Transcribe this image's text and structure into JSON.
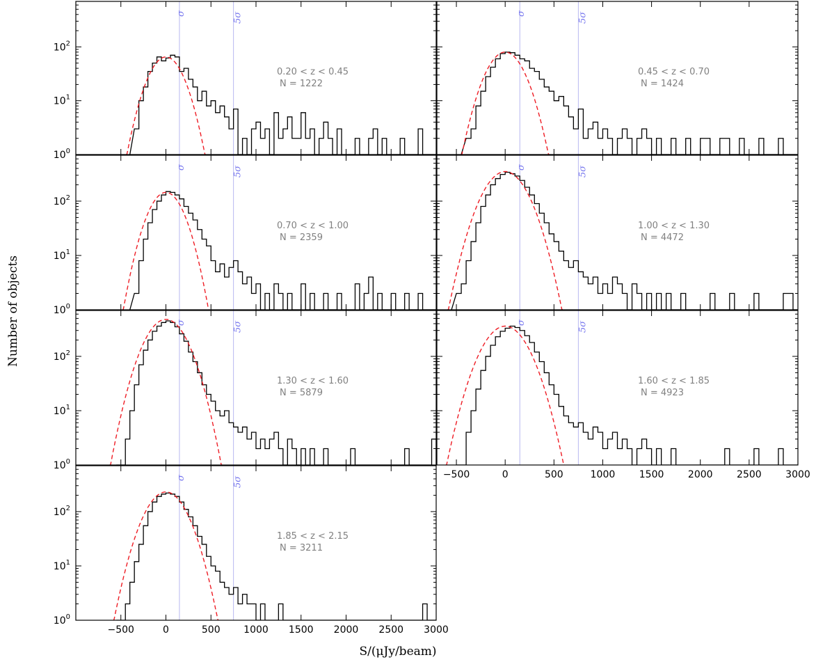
{
  "figure": {
    "ylabel": "Number of objects",
    "xlabel": "S/(μJy/beam)",
    "sigma_label": "σ",
    "five_sigma_label": "5σ",
    "colors": {
      "histogram": "#000000",
      "gaussian_fit": "#ee1c24",
      "sigma_lines": "#b8b8f0",
      "annotation": "#808080"
    }
  },
  "chart_data": [
    {
      "type": "histogram",
      "panel": "0.20 < z < 0.45",
      "annotation": [
        "0.20 < z < 0.45",
        "N = 1222"
      ],
      "xlim": [
        -1000,
        3000
      ],
      "yscale": "log",
      "ylim": [
        1,
        700
      ],
      "sigma_lines": [
        150,
        750
      ],
      "histogram": {
        "x": [
          -350,
          -300,
          -250,
          -200,
          -150,
          -100,
          -50,
          0,
          50,
          100,
          150,
          200,
          250,
          300,
          350,
          400,
          450,
          500,
          550,
          600,
          650,
          700,
          750,
          800,
          850,
          900,
          950,
          1000,
          1050,
          1100,
          1150,
          1200,
          1250,
          1300,
          1350,
          1400,
          1450,
          1500,
          1550,
          1600,
          1650,
          1700,
          1750,
          1800,
          1850,
          1900,
          1950,
          2000,
          2050,
          2100,
          2150,
          2200,
          2250,
          2300,
          2350,
          2400,
          2450,
          2500,
          2550,
          2600,
          2650,
          2700,
          2750,
          2800,
          2850,
          2900,
          2950
        ],
        "counts": [
          3,
          10,
          18,
          35,
          50,
          65,
          55,
          62,
          70,
          65,
          35,
          40,
          25,
          18,
          10,
          15,
          8,
          10,
          6,
          8,
          5,
          3,
          7,
          1,
          2,
          1,
          3,
          4,
          2,
          3,
          1,
          6,
          2,
          3,
          5,
          2,
          2,
          6,
          2,
          3,
          1,
          2,
          4,
          2,
          1,
          3,
          1,
          1,
          1,
          2,
          1,
          1,
          2,
          3,
          1,
          2,
          1,
          1,
          1,
          2,
          1,
          1,
          1,
          3,
          1,
          1,
          1
        ]
      },
      "gaussian_fit": {
        "mu": 0,
        "sigma": 150,
        "amplitude": 65
      }
    },
    {
      "type": "histogram",
      "panel": "0.45 < z < 0.70",
      "annotation": [
        "0.45 < z < 0.70",
        "N = 1424"
      ],
      "xlim": [
        -700,
        3000
      ],
      "yscale": "log",
      "ylim": [
        1,
        700
      ],
      "sigma_lines": [
        150,
        750
      ],
      "histogram": {
        "x": [
          -400,
          -350,
          -300,
          -250,
          -200,
          -150,
          -100,
          -50,
          0,
          50,
          100,
          150,
          200,
          250,
          300,
          350,
          400,
          450,
          500,
          550,
          600,
          650,
          700,
          750,
          800,
          850,
          900,
          950,
          1000,
          1050,
          1100,
          1150,
          1200,
          1250,
          1300,
          1350,
          1400,
          1450,
          1500,
          1550,
          1600,
          1650,
          1700,
          1750,
          1800,
          1850,
          1900,
          1950,
          2000,
          2050,
          2100,
          2150,
          2200,
          2250,
          2300,
          2350,
          2400,
          2450,
          2500,
          2550,
          2600,
          2650,
          2700,
          2750,
          2800,
          2850,
          2900,
          2950
        ],
        "counts": [
          2,
          3,
          8,
          15,
          28,
          42,
          60,
          75,
          80,
          78,
          70,
          60,
          55,
          40,
          35,
          25,
          18,
          15,
          10,
          12,
          8,
          5,
          3,
          7,
          2,
          3,
          4,
          2,
          3,
          2,
          1,
          2,
          3,
          2,
          1,
          2,
          3,
          2,
          1,
          2,
          1,
          1,
          2,
          1,
          1,
          2,
          1,
          1,
          2,
          2,
          1,
          1,
          2,
          2,
          1,
          1,
          2,
          1,
          1,
          1,
          2,
          1,
          1,
          1,
          2,
          1,
          1,
          1
        ]
      },
      "gaussian_fit": {
        "mu": 0,
        "sigma": 150,
        "amplitude": 80
      }
    },
    {
      "type": "histogram",
      "panel": "0.70 < z < 1.00",
      "annotation": [
        "0.70 < z < 1.00",
        "N = 2359"
      ],
      "xlim": [
        -1000,
        3000
      ],
      "yscale": "log",
      "ylim": [
        1,
        700
      ],
      "sigma_lines": [
        150,
        750
      ],
      "histogram": {
        "x": [
          -350,
          -300,
          -250,
          -200,
          -150,
          -100,
          -50,
          0,
          50,
          100,
          150,
          200,
          250,
          300,
          350,
          400,
          450,
          500,
          550,
          600,
          650,
          700,
          750,
          800,
          850,
          900,
          950,
          1000,
          1050,
          1100,
          1150,
          1200,
          1250,
          1300,
          1350,
          1400,
          1450,
          1500,
          1550,
          1600,
          1650,
          1700,
          1750,
          1800,
          1850,
          1900,
          1950,
          2000,
          2050,
          2100,
          2150,
          2200,
          2250,
          2300,
          2350,
          2400,
          2450,
          2500,
          2550,
          2600,
          2650,
          2700,
          2750,
          2800,
          2850,
          2900,
          2950
        ],
        "counts": [
          2,
          8,
          20,
          40,
          70,
          100,
          130,
          150,
          145,
          130,
          110,
          80,
          60,
          45,
          30,
          20,
          15,
          8,
          5,
          7,
          4,
          6,
          8,
          5,
          3,
          4,
          2,
          3,
          1,
          2,
          1,
          3,
          2,
          1,
          2,
          1,
          1,
          3,
          1,
          2,
          1,
          1,
          2,
          1,
          1,
          2,
          1,
          1,
          1,
          3,
          1,
          2,
          4,
          1,
          2,
          1,
          1,
          2,
          1,
          1,
          2,
          1,
          1,
          2,
          1,
          1,
          1
        ]
      },
      "gaussian_fit": {
        "mu": 0,
        "sigma": 150,
        "amplitude": 145
      }
    },
    {
      "type": "histogram",
      "panel": "1.00 < z < 1.30",
      "annotation": [
        "1.00 < z < 1.30",
        "N = 4472"
      ],
      "xlim": [
        -700,
        3000
      ],
      "yscale": "log",
      "ylim": [
        1,
        700
      ],
      "sigma_lines": [
        150,
        750
      ],
      "histogram": {
        "x": [
          -500,
          -450,
          -400,
          -350,
          -300,
          -250,
          -200,
          -150,
          -100,
          -50,
          0,
          50,
          100,
          150,
          200,
          250,
          300,
          350,
          400,
          450,
          500,
          550,
          600,
          650,
          700,
          750,
          800,
          850,
          900,
          950,
          1000,
          1050,
          1100,
          1150,
          1200,
          1250,
          1300,
          1350,
          1400,
          1450,
          1500,
          1550,
          1600,
          1650,
          1700,
          1750,
          1800,
          1850,
          1900,
          1950,
          2000,
          2050,
          2100,
          2150,
          2200,
          2250,
          2300,
          2350,
          2400,
          2450,
          2500,
          2550,
          2600,
          2650,
          2700,
          2750,
          2800,
          2850,
          2900,
          2950
        ],
        "counts": [
          2,
          3,
          8,
          18,
          40,
          80,
          130,
          200,
          260,
          310,
          340,
          320,
          290,
          240,
          180,
          130,
          90,
          60,
          40,
          25,
          18,
          12,
          8,
          6,
          8,
          5,
          4,
          3,
          4,
          2,
          3,
          2,
          4,
          3,
          2,
          1,
          3,
          2,
          1,
          2,
          1,
          2,
          1,
          2,
          1,
          1,
          2,
          1,
          1,
          1,
          1,
          1,
          2,
          1,
          1,
          1,
          2,
          1,
          1,
          1,
          1,
          2,
          1,
          1,
          1,
          1,
          1,
          2,
          2,
          1
        ]
      },
      "gaussian_fit": {
        "mu": 0,
        "sigma": 170,
        "amplitude": 350
      }
    },
    {
      "type": "histogram",
      "panel": "1.30 < z < 1.60",
      "annotation": [
        "1.30 < z < 1.60",
        "N = 5879"
      ],
      "xlim": [
        -1000,
        3000
      ],
      "yscale": "log",
      "ylim": [
        1,
        700
      ],
      "sigma_lines": [
        150,
        750
      ],
      "histogram": {
        "x": [
          -500,
          -450,
          -400,
          -350,
          -300,
          -250,
          -200,
          -150,
          -100,
          -50,
          0,
          50,
          100,
          150,
          200,
          250,
          300,
          350,
          400,
          450,
          500,
          550,
          600,
          650,
          700,
          750,
          800,
          850,
          900,
          950,
          1000,
          1050,
          1100,
          1150,
          1200,
          1250,
          1300,
          1350,
          1400,
          1450,
          1500,
          1550,
          1600,
          1650,
          1700,
          1750,
          1800,
          1850,
          1900,
          1950,
          2000,
          2050,
          2100,
          2150,
          2200,
          2250,
          2300,
          2350,
          2400,
          2450,
          2500,
          2550,
          2600,
          2650,
          2700,
          2750,
          2800,
          2850,
          2900,
          2950
        ],
        "counts": [
          1,
          3,
          10,
          30,
          70,
          130,
          200,
          290,
          360,
          420,
          450,
          420,
          350,
          260,
          190,
          120,
          80,
          50,
          30,
          20,
          15,
          10,
          8,
          10,
          6,
          5,
          4,
          5,
          3,
          4,
          2,
          3,
          2,
          3,
          4,
          2,
          1,
          3,
          2,
          1,
          2,
          1,
          2,
          1,
          1,
          2,
          1,
          1,
          1,
          1,
          1,
          2,
          1,
          1,
          1,
          1,
          1,
          1,
          1,
          1,
          1,
          1,
          1,
          2,
          1,
          1,
          1,
          1,
          1,
          3
        ]
      },
      "gaussian_fit": {
        "mu": 0,
        "sigma": 175,
        "amplitude": 480
      }
    },
    {
      "type": "histogram",
      "panel": "1.60 < z < 1.85",
      "annotation": [
        "1.60 < z < 1.85",
        "N = 4923"
      ],
      "xlim": [
        -700,
        3000
      ],
      "yscale": "log",
      "ylim": [
        1,
        700
      ],
      "sigma_lines": [
        150,
        750
      ],
      "histogram": {
        "x": [
          -450,
          -400,
          -350,
          -300,
          -250,
          -200,
          -150,
          -100,
          -50,
          0,
          50,
          100,
          150,
          200,
          250,
          300,
          350,
          400,
          450,
          500,
          550,
          600,
          650,
          700,
          750,
          800,
          850,
          900,
          950,
          1000,
          1050,
          1100,
          1150,
          1200,
          1250,
          1300,
          1350,
          1400,
          1450,
          1500,
          1550,
          1600,
          1650,
          1700,
          1750,
          1800,
          1850,
          1900,
          1950,
          2000,
          2050,
          2100,
          2150,
          2200,
          2250,
          2300,
          2350,
          2400,
          2450,
          2500,
          2550,
          2600,
          2650,
          2700,
          2750,
          2800,
          2850,
          2900,
          2950
        ],
        "counts": [
          1,
          4,
          10,
          25,
          55,
          100,
          160,
          230,
          290,
          330,
          360,
          340,
          300,
          240,
          180,
          120,
          80,
          50,
          30,
          20,
          12,
          8,
          6,
          5,
          6,
          4,
          3,
          5,
          4,
          2,
          3,
          4,
          2,
          3,
          2,
          1,
          2,
          3,
          2,
          1,
          2,
          1,
          1,
          2,
          1,
          1,
          1,
          1,
          1,
          1,
          1,
          1,
          1,
          1,
          2,
          1,
          1,
          1,
          1,
          1,
          2,
          1,
          1,
          1,
          1,
          2,
          1,
          1,
          1
        ]
      },
      "gaussian_fit": {
        "mu": 0,
        "sigma": 175,
        "amplitude": 360
      }
    },
    {
      "type": "histogram",
      "panel": "1.85 < z < 2.15",
      "annotation": [
        "1.85 < z < 2.15",
        "N = 3211"
      ],
      "xlim": [
        -1000,
        3000
      ],
      "yscale": "log",
      "ylim": [
        1,
        700
      ],
      "sigma_lines": [
        150,
        750
      ],
      "histogram": {
        "x": [
          -500,
          -450,
          -400,
          -350,
          -300,
          -250,
          -200,
          -150,
          -100,
          -50,
          0,
          50,
          100,
          150,
          200,
          250,
          300,
          350,
          400,
          450,
          500,
          550,
          600,
          650,
          700,
          750,
          800,
          850,
          900,
          950,
          1000,
          1050,
          1100,
          1150,
          1200,
          1250,
          1300,
          1350,
          1400,
          1450,
          1500,
          1550,
          1600,
          1650,
          1700,
          1750,
          1800,
          1850,
          1900,
          1950,
          2000,
          2050,
          2100,
          2150,
          2200,
          2250,
          2300,
          2350,
          2400,
          2450,
          2500,
          2550,
          2600,
          2650,
          2700,
          2750,
          2800,
          2850,
          2900,
          2950
        ],
        "counts": [
          1,
          2,
          5,
          12,
          25,
          55,
          100,
          150,
          190,
          210,
          220,
          210,
          190,
          150,
          110,
          80,
          55,
          35,
          25,
          15,
          10,
          8,
          5,
          4,
          3,
          4,
          2,
          3,
          2,
          2,
          1,
          2,
          1,
          1,
          1,
          2,
          1,
          1,
          1,
          1,
          1,
          1,
          1,
          1,
          1,
          1,
          1,
          1,
          1,
          1,
          1,
          1,
          1,
          1,
          1,
          1,
          1,
          1,
          1,
          1,
          1,
          1,
          1,
          1,
          1,
          1,
          1,
          2,
          1,
          1
        ]
      },
      "gaussian_fit": {
        "mu": 0,
        "sigma": 175,
        "amplitude": 230
      }
    }
  ],
  "axes": {
    "y_ticks": [
      {
        "value": 1,
        "base": "10",
        "exp": "0"
      },
      {
        "value": 10,
        "base": "10",
        "exp": "1"
      },
      {
        "value": 100,
        "base": "10",
        "exp": "2"
      }
    ],
    "x_tick_labels_left": [
      "−500",
      "0",
      "500",
      "1000",
      "1500",
      "2000",
      "2500",
      "3000"
    ],
    "x_tick_labels_right": [
      "−500",
      "0",
      "500",
      "1000",
      "1500",
      "2000",
      "2500",
      "3000"
    ],
    "x_tick_values": [
      -500,
      0,
      500,
      1000,
      1500,
      2000,
      2500,
      3000
    ]
  }
}
